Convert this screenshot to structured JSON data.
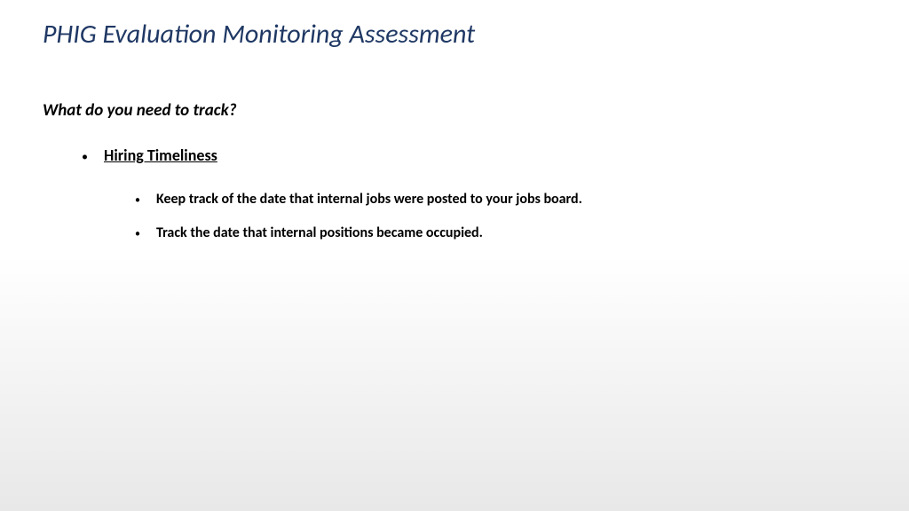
{
  "slide": {
    "title": "PHIG Evaluation Monitoring Assessment",
    "subtitle": "What do you need to track?",
    "section_heading": "Hiring Timeliness",
    "bullets": [
      "Keep track of the date that internal jobs were posted to your jobs board.",
      "Track the date that internal positions became occupied."
    ]
  },
  "colors": {
    "title_color": "#1f3864",
    "text_color": "#000000",
    "background_top": "#ffffff",
    "background_bottom": "#e8e8e8"
  },
  "typography": {
    "title_fontsize": 30,
    "subtitle_fontsize": 19,
    "l1_fontsize": 18,
    "l2_fontsize": 16,
    "font_family": "Calibri"
  }
}
